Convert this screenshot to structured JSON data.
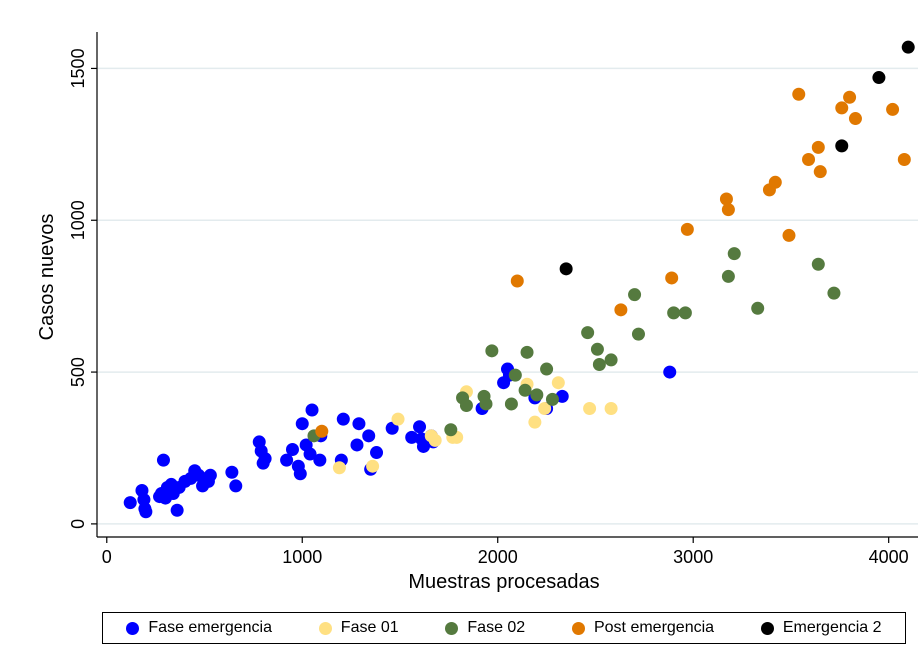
{
  "chart_data": {
    "type": "scatter",
    "xlabel": "Muestras procesadas",
    "ylabel": "Casos nuevos",
    "xlim": [
      -50,
      4150
    ],
    "ylim": [
      -30,
      1620
    ],
    "xticks": [
      0,
      1000,
      2000,
      3000,
      4000
    ],
    "yticks": [
      0,
      500,
      1000,
      1500
    ],
    "xtick_labels": [
      "0",
      "1000",
      "2000",
      "3000",
      "4000"
    ],
    "ytick_labels": [
      "0",
      "500",
      "1000",
      "1500"
    ],
    "grid": "horizontal",
    "legend_position": "bottom",
    "series": [
      {
        "name": "Fase emergencia",
        "color": "#0000ff",
        "points": [
          [
            120,
            70
          ],
          [
            180,
            110
          ],
          [
            190,
            80
          ],
          [
            200,
            40
          ],
          [
            195,
            50
          ],
          [
            290,
            210
          ],
          [
            270,
            90
          ],
          [
            280,
            100
          ],
          [
            300,
            85
          ],
          [
            310,
            120
          ],
          [
            330,
            130
          ],
          [
            340,
            100
          ],
          [
            360,
            45
          ],
          [
            370,
            120
          ],
          [
            400,
            140
          ],
          [
            430,
            150
          ],
          [
            450,
            175
          ],
          [
            470,
            160
          ],
          [
            490,
            125
          ],
          [
            500,
            140
          ],
          [
            530,
            160
          ],
          [
            520,
            140
          ],
          [
            640,
            170
          ],
          [
            660,
            125
          ],
          [
            780,
            270
          ],
          [
            790,
            240
          ],
          [
            800,
            200
          ],
          [
            810,
            215
          ],
          [
            920,
            210
          ],
          [
            950,
            245
          ],
          [
            980,
            190
          ],
          [
            990,
            165
          ],
          [
            1000,
            330
          ],
          [
            1020,
            260
          ],
          [
            1040,
            230
          ],
          [
            1050,
            375
          ],
          [
            1090,
            210
          ],
          [
            1095,
            290
          ],
          [
            1200,
            210
          ],
          [
            1210,
            345
          ],
          [
            1280,
            260
          ],
          [
            1290,
            330
          ],
          [
            1340,
            290
          ],
          [
            1350,
            180
          ],
          [
            1380,
            235
          ],
          [
            1460,
            315
          ],
          [
            1560,
            285
          ],
          [
            1600,
            320
          ],
          [
            1610,
            280
          ],
          [
            1620,
            255
          ],
          [
            1660,
            290
          ],
          [
            1670,
            270
          ],
          [
            1920,
            380
          ],
          [
            2030,
            465
          ],
          [
            2050,
            510
          ],
          [
            2060,
            490
          ],
          [
            2190,
            415
          ],
          [
            2250,
            380
          ],
          [
            2330,
            420
          ],
          [
            2880,
            500
          ]
        ]
      },
      {
        "name": "Fase 01",
        "color": "#ffe082",
        "points": [
          [
            1190,
            185
          ],
          [
            1360,
            190
          ],
          [
            1490,
            345
          ],
          [
            1660,
            290
          ],
          [
            1680,
            275
          ],
          [
            1770,
            285
          ],
          [
            1790,
            285
          ],
          [
            1840,
            435
          ],
          [
            2150,
            460
          ],
          [
            2190,
            335
          ],
          [
            2240,
            380
          ],
          [
            2310,
            465
          ],
          [
            2470,
            380
          ],
          [
            2580,
            380
          ]
        ]
      },
      {
        "name": "Fase 02",
        "color": "#557a3f",
        "points": [
          [
            1060,
            290
          ],
          [
            1760,
            310
          ],
          [
            1820,
            415
          ],
          [
            1840,
            390
          ],
          [
            1930,
            420
          ],
          [
            1940,
            395
          ],
          [
            1970,
            570
          ],
          [
            2070,
            395
          ],
          [
            2090,
            490
          ],
          [
            2140,
            440
          ],
          [
            2150,
            565
          ],
          [
            2200,
            425
          ],
          [
            2250,
            510
          ],
          [
            2280,
            410
          ],
          [
            2460,
            630
          ],
          [
            2510,
            575
          ],
          [
            2520,
            525
          ],
          [
            2580,
            540
          ],
          [
            2700,
            755
          ],
          [
            2720,
            625
          ],
          [
            2900,
            695
          ],
          [
            2960,
            695
          ],
          [
            3180,
            815
          ],
          [
            3210,
            890
          ],
          [
            3330,
            710
          ],
          [
            3640,
            855
          ],
          [
            3720,
            760
          ]
        ]
      },
      {
        "name": "Post emergencia",
        "color": "#e07800",
        "points": [
          [
            1100,
            305
          ],
          [
            2100,
            800
          ],
          [
            2630,
            705
          ],
          [
            2890,
            810
          ],
          [
            2970,
            970
          ],
          [
            3170,
            1070
          ],
          [
            3180,
            1035
          ],
          [
            3390,
            1100
          ],
          [
            3420,
            1125
          ],
          [
            3490,
            950
          ],
          [
            3540,
            1415
          ],
          [
            3590,
            1200
          ],
          [
            3640,
            1240
          ],
          [
            3650,
            1160
          ],
          [
            3760,
            1370
          ],
          [
            3800,
            1405
          ],
          [
            3830,
            1335
          ],
          [
            4020,
            1365
          ],
          [
            4080,
            1200
          ]
        ]
      },
      {
        "name": "Emergencia 2",
        "color": "#000000",
        "points": [
          [
            2350,
            840
          ],
          [
            3760,
            1245
          ],
          [
            3950,
            1470
          ],
          [
            4100,
            1570
          ]
        ]
      }
    ]
  }
}
